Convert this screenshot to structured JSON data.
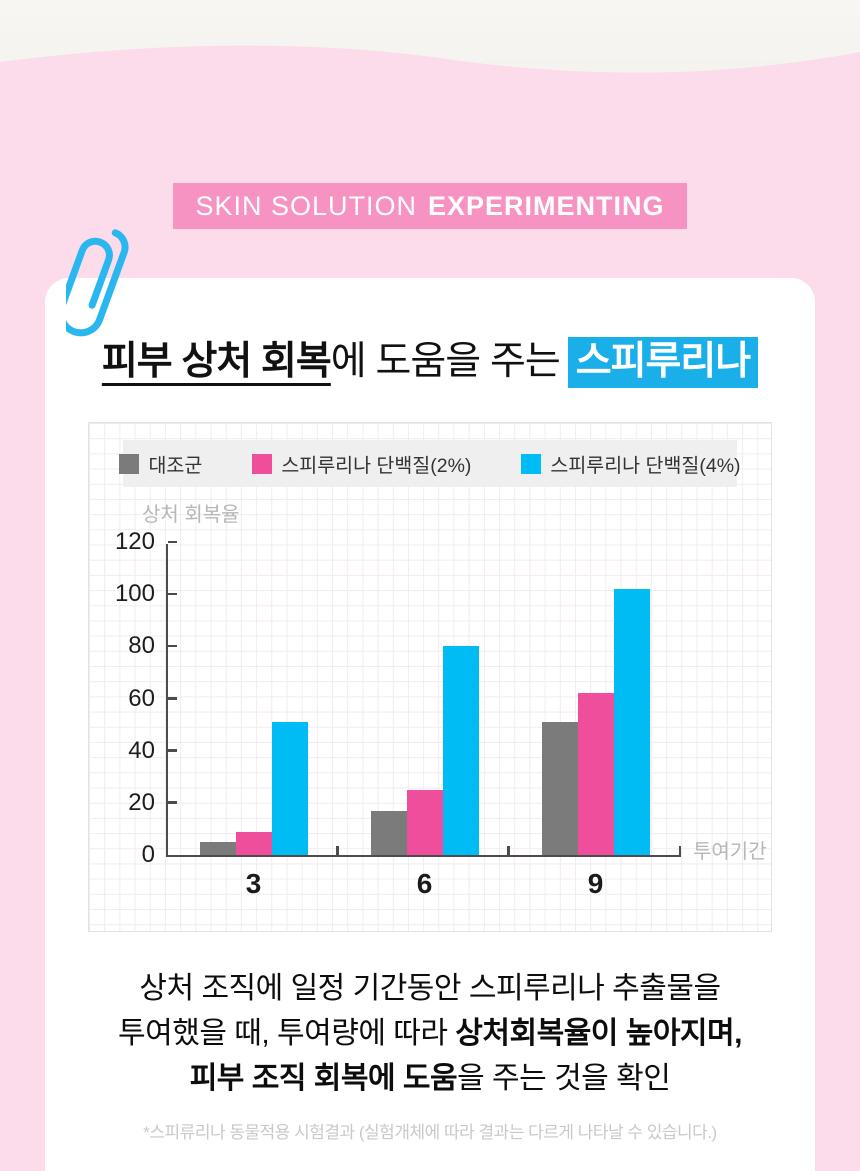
{
  "banner": {
    "normal": "SKIN SOLUTION",
    "bold": "EXPERIMENTING"
  },
  "title": {
    "underline_bold": "피부 상처 회복",
    "regular": "에 도움을 주는",
    "highlight": "스피루리나"
  },
  "chart_data": {
    "type": "bar",
    "categories": [
      "3",
      "6",
      "9"
    ],
    "series": [
      {
        "name": "대조군",
        "color": "#7b7b7b",
        "values": [
          5,
          17,
          51
        ]
      },
      {
        "name": "스피루리나 단백질(2%)",
        "color": "#ee4e9b",
        "values": [
          9,
          25,
          62
        ]
      },
      {
        "name": "스피루리나 단백질(4%)",
        "color": "#00bcf5",
        "values": [
          51,
          80,
          102
        ]
      }
    ],
    "title": "",
    "ylabel": "상처 회복율",
    "xlabel": "투여기간",
    "yticks": [
      0,
      20,
      40,
      60,
      80,
      100,
      120
    ],
    "ylim": [
      0,
      120
    ],
    "grid": true,
    "legend_position": "top"
  },
  "description": {
    "line1": "상처 조직에 일정 기간동안 스피루리나 추출물을",
    "line2_regular": "투여했을 때, 투여량에 따라 ",
    "line2_bold": "상처회복율이 높아지며,",
    "line3_bold": "피부 조직 회복에 도움",
    "line3_regular": "을 주는 것을 확인"
  },
  "footnote": "*스피류리나 동물적용 시험결과 (실험개체에 따라 결과는 다르게 나타날 수 있습니다.)",
  "colors": {
    "page_pink": "#fcdceb",
    "paper": "#f7f6f2",
    "banner_pink": "#f693c2",
    "highlight_blue": "#1aafe9",
    "paperclip_blue": "#2ab7f0",
    "legend_bg": "#efefef",
    "axis": "#4c4c4c",
    "muted_label": "#b7b7b7"
  }
}
